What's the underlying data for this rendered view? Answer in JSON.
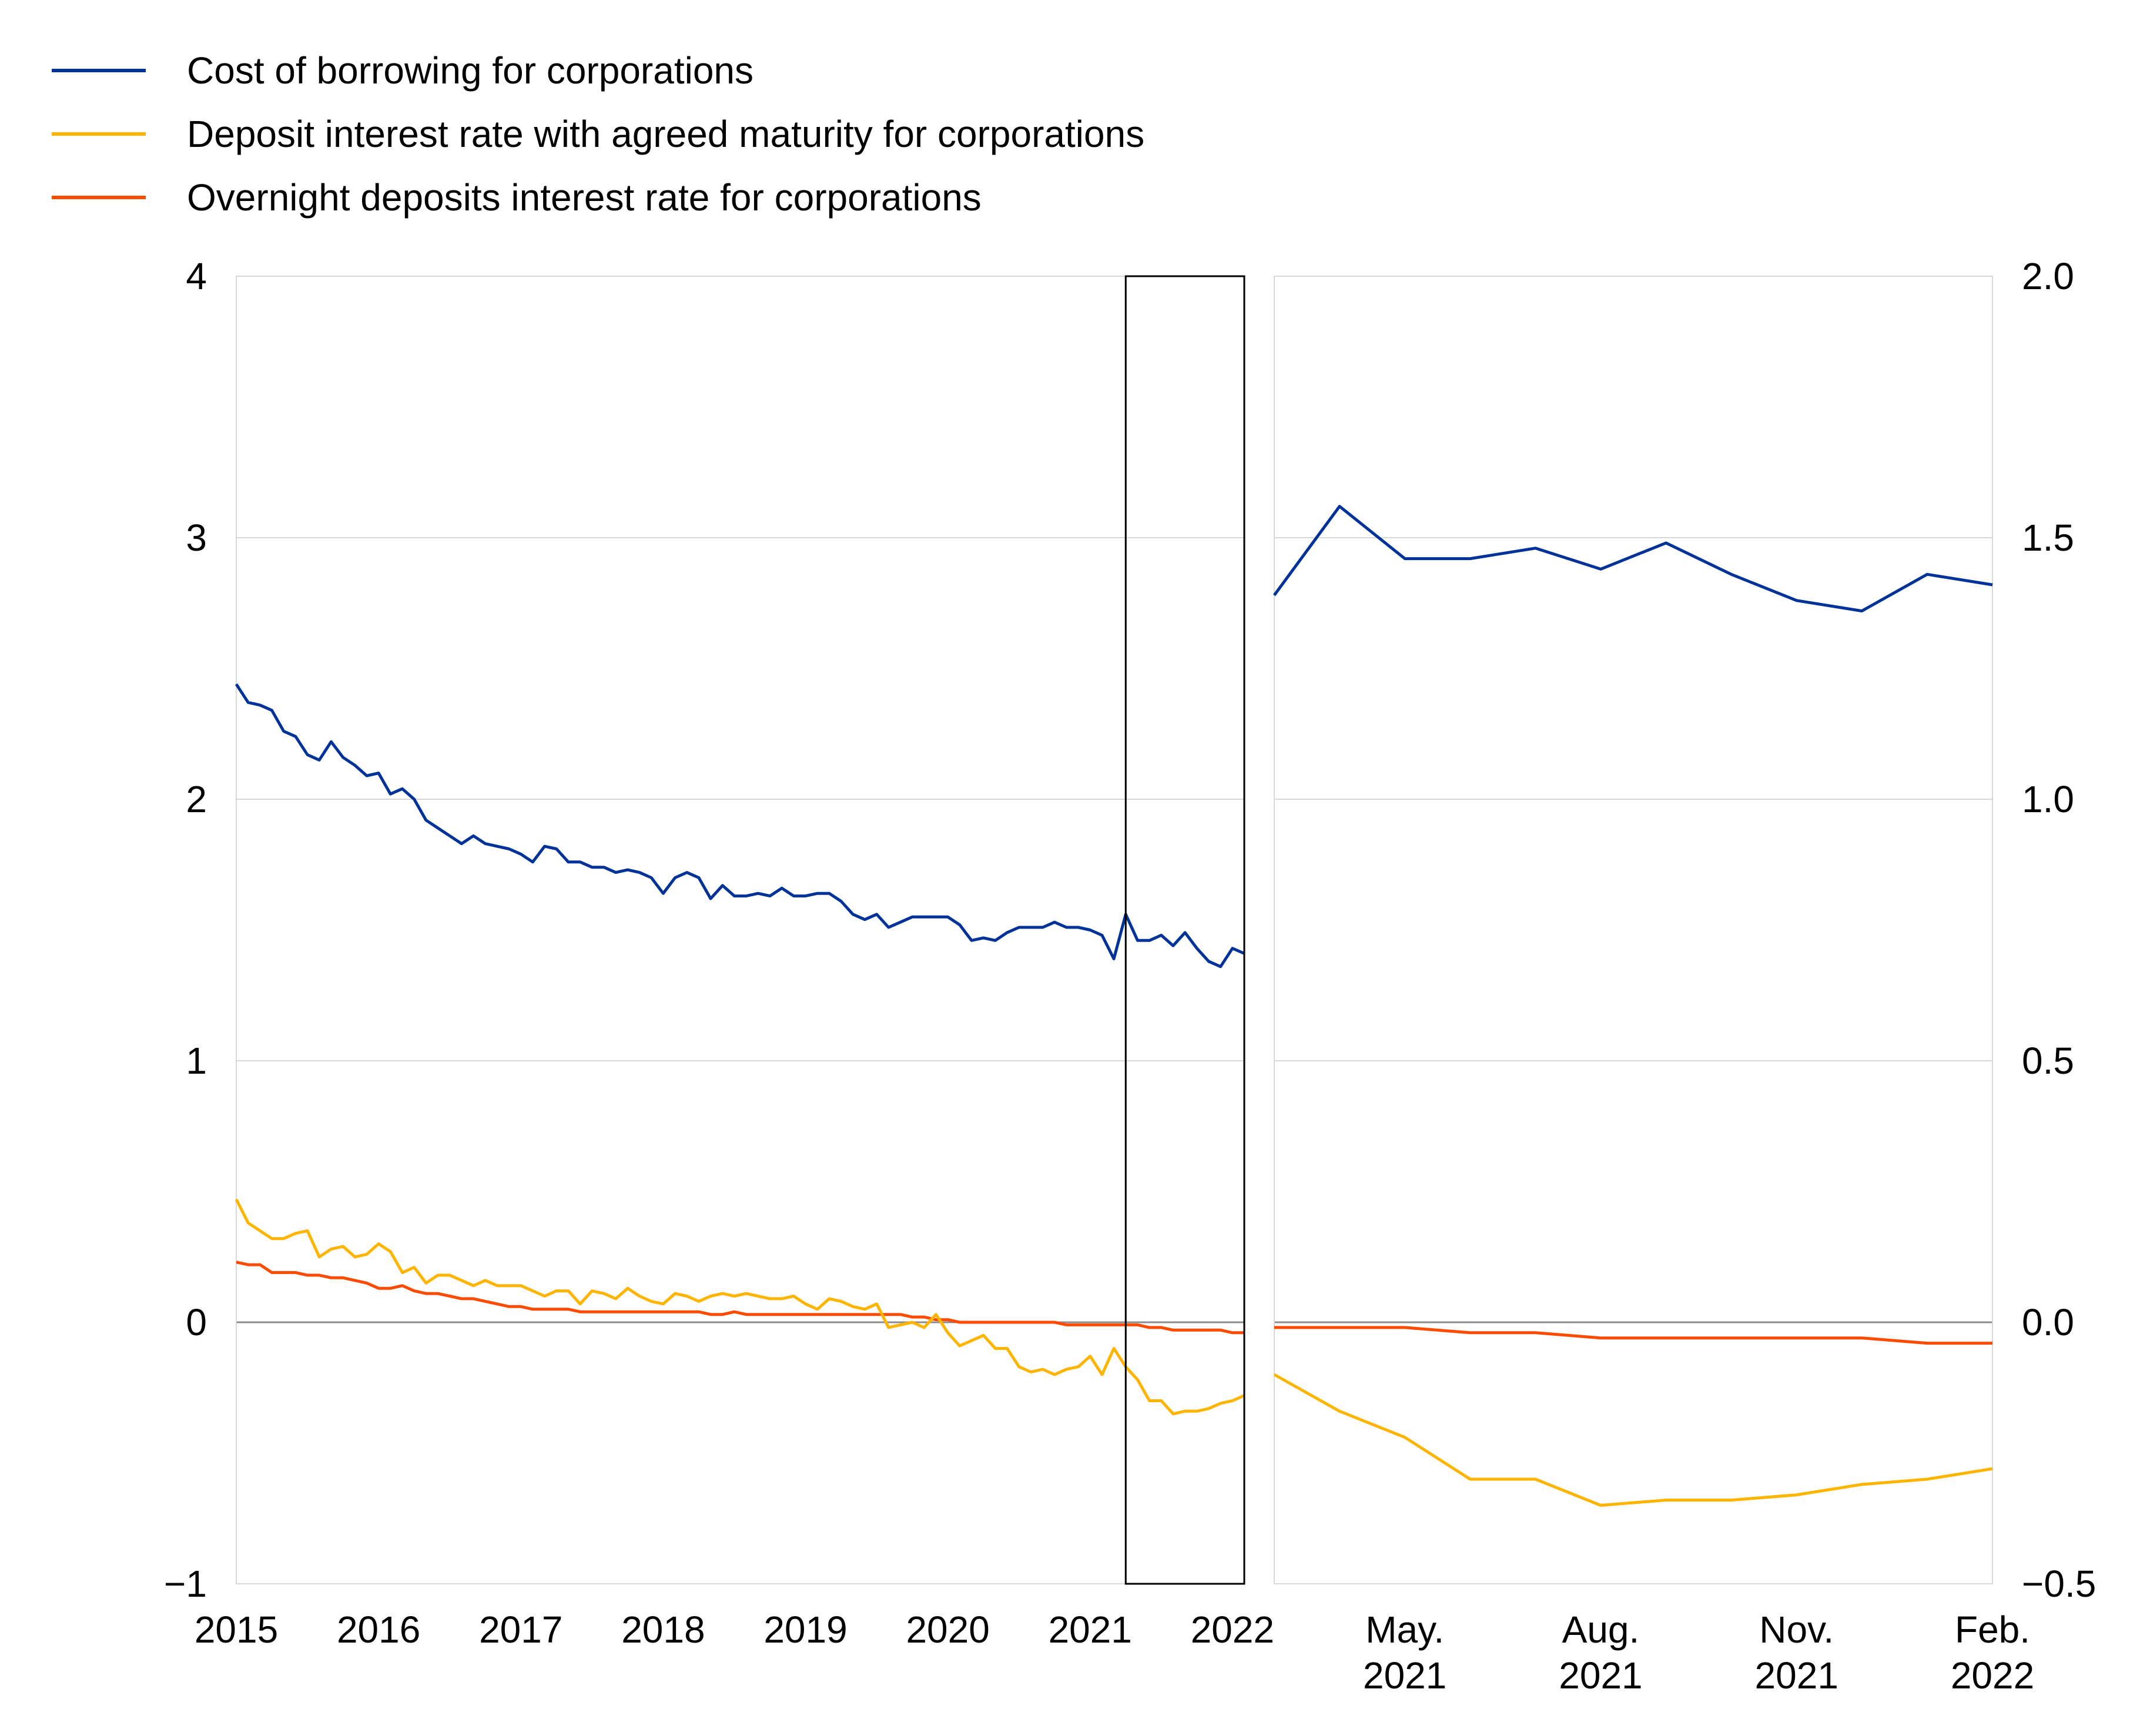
{
  "legend": [
    {
      "label": "Cost of borrowing for corporations",
      "color": "#003299"
    },
    {
      "label": "Deposit interest rate with agreed maturity for corporations",
      "color": "#FFB400"
    },
    {
      "label": "Overnight deposits interest rate for corporations",
      "color": "#FF4B00"
    }
  ],
  "chart_data": [
    {
      "type": "line",
      "title": "",
      "xlabel": "",
      "ylabel": "",
      "ylim": [
        -1,
        4
      ],
      "yticks": [
        "−1",
        "0",
        "1",
        "2",
        "3",
        "4"
      ],
      "yticks_values": [
        -1,
        0,
        1,
        2,
        3,
        4
      ],
      "xlim": [
        2015.0,
        2022.083
      ],
      "xticks": [
        "2015",
        "2016",
        "2017",
        "2018",
        "2019",
        "2020",
        "2021",
        "2022"
      ],
      "xticks_values": [
        2015,
        2016,
        2017,
        2018,
        2019,
        2020,
        2021,
        2022
      ],
      "grid": true,
      "highlight_box": {
        "x": [
          2021.25,
          2022.083
        ],
        "y": [
          -1,
          4
        ]
      },
      "series": [
        {
          "name": "Cost of borrowing for corporations",
          "color": "#003299",
          "start": 2015.0,
          "values": [
            2.44,
            2.37,
            2.36,
            2.34,
            2.26,
            2.24,
            2.17,
            2.15,
            2.22,
            2.16,
            2.13,
            2.09,
            2.1,
            2.02,
            2.04,
            2.0,
            1.92,
            1.89,
            1.86,
            1.83,
            1.86,
            1.83,
            1.82,
            1.81,
            1.79,
            1.76,
            1.82,
            1.81,
            1.76,
            1.76,
            1.74,
            1.74,
            1.72,
            1.73,
            1.72,
            1.7,
            1.64,
            1.7,
            1.72,
            1.7,
            1.62,
            1.67,
            1.63,
            1.63,
            1.64,
            1.63,
            1.66,
            1.63,
            1.63,
            1.64,
            1.64,
            1.61,
            1.56,
            1.54,
            1.56,
            1.51,
            1.53,
            1.55,
            1.55,
            1.55,
            1.55,
            1.52,
            1.46,
            1.47,
            1.46,
            1.49,
            1.51,
            1.51,
            1.51,
            1.53,
            1.51,
            1.51,
            1.5,
            1.48,
            1.39,
            1.56,
            1.46,
            1.46,
            1.48,
            1.44,
            1.49,
            1.43,
            1.38,
            1.36,
            1.43,
            1.41
          ]
        },
        {
          "name": "Deposit interest rate with agreed maturity for corporations",
          "color": "#FFB400",
          "start": 2015.0,
          "values": [
            0.47,
            0.38,
            0.35,
            0.32,
            0.32,
            0.34,
            0.35,
            0.25,
            0.28,
            0.29,
            0.25,
            0.26,
            0.3,
            0.27,
            0.19,
            0.21,
            0.15,
            0.18,
            0.18,
            0.16,
            0.14,
            0.16,
            0.14,
            0.14,
            0.14,
            0.12,
            0.1,
            0.12,
            0.12,
            0.07,
            0.12,
            0.11,
            0.09,
            0.13,
            0.1,
            0.08,
            0.07,
            0.11,
            0.1,
            0.08,
            0.1,
            0.11,
            0.1,
            0.11,
            0.1,
            0.09,
            0.09,
            0.1,
            0.07,
            0.05,
            0.09,
            0.08,
            0.06,
            0.05,
            0.07,
            -0.02,
            -0.01,
            0.0,
            -0.02,
            0.03,
            -0.04,
            -0.09,
            -0.07,
            -0.05,
            -0.1,
            -0.1,
            -0.17,
            -0.19,
            -0.18,
            -0.2,
            -0.18,
            -0.17,
            -0.13,
            -0.2,
            -0.1,
            -0.17,
            -0.22,
            -0.3,
            -0.3,
            -0.35,
            -0.34,
            -0.34,
            -0.33,
            -0.31,
            -0.3,
            -0.28
          ]
        },
        {
          "name": "Overnight deposits interest rate for corporations",
          "color": "#FF4B00",
          "start": 2015.0,
          "values": [
            0.23,
            0.22,
            0.22,
            0.19,
            0.19,
            0.19,
            0.18,
            0.18,
            0.17,
            0.17,
            0.16,
            0.15,
            0.13,
            0.13,
            0.14,
            0.12,
            0.11,
            0.11,
            0.1,
            0.09,
            0.09,
            0.08,
            0.07,
            0.06,
            0.06,
            0.05,
            0.05,
            0.05,
            0.05,
            0.04,
            0.04,
            0.04,
            0.04,
            0.04,
            0.04,
            0.04,
            0.04,
            0.04,
            0.04,
            0.04,
            0.03,
            0.03,
            0.04,
            0.03,
            0.03,
            0.03,
            0.03,
            0.03,
            0.03,
            0.03,
            0.03,
            0.03,
            0.03,
            0.03,
            0.03,
            0.03,
            0.03,
            0.02,
            0.02,
            0.01,
            0.01,
            0.0,
            0.0,
            0.0,
            0.0,
            0.0,
            0.0,
            0.0,
            0.0,
            0.0,
            -0.01,
            -0.01,
            -0.01,
            -0.01,
            -0.01,
            -0.01,
            -0.01,
            -0.02,
            -0.02,
            -0.03,
            -0.03,
            -0.03,
            -0.03,
            -0.03,
            -0.04,
            -0.04
          ]
        }
      ]
    },
    {
      "type": "line",
      "title": "",
      "xlabel": "",
      "ylabel": "",
      "ylim": [
        -0.5,
        2.0
      ],
      "yticks": [
        "−0.5",
        "0.0",
        "0.5",
        "1.0",
        "1.5",
        "2.0"
      ],
      "yticks_values": [
        -0.5,
        0.0,
        0.5,
        1.0,
        1.5,
        2.0
      ],
      "categories": [
        "Mar. 2021",
        "Apr. 2021",
        "May. 2021",
        "Jun. 2021",
        "Jul. 2021",
        "Aug. 2021",
        "Sep. 2021",
        "Oct. 2021",
        "Nov. 2021",
        "Dec. 2021",
        "Jan. 2022",
        "Feb. 2022"
      ],
      "xticks": [
        {
          "index": 2,
          "line1": "May.",
          "line2": "2021"
        },
        {
          "index": 5,
          "line1": "Aug.",
          "line2": "2021"
        },
        {
          "index": 8,
          "line1": "Nov.",
          "line2": "2021"
        },
        {
          "index": 11,
          "line1": "Feb.",
          "line2": "2022"
        }
      ],
      "grid": true,
      "series": [
        {
          "name": "Cost of borrowing for corporations",
          "color": "#003299",
          "values": [
            1.39,
            1.56,
            1.46,
            1.46,
            1.48,
            1.44,
            1.49,
            1.43,
            1.38,
            1.36,
            1.43,
            1.41
          ]
        },
        {
          "name": "Deposit interest rate with agreed maturity for corporations",
          "color": "#FFB400",
          "values": [
            -0.1,
            -0.17,
            -0.22,
            -0.3,
            -0.3,
            -0.35,
            -0.34,
            -0.34,
            -0.33,
            -0.31,
            -0.3,
            -0.28
          ]
        },
        {
          "name": "Overnight deposits interest rate for corporations",
          "color": "#FF4B00",
          "values": [
            -0.01,
            -0.01,
            -0.01,
            -0.02,
            -0.02,
            -0.03,
            -0.03,
            -0.03,
            -0.03,
            -0.03,
            -0.04,
            -0.04
          ]
        }
      ]
    }
  ]
}
